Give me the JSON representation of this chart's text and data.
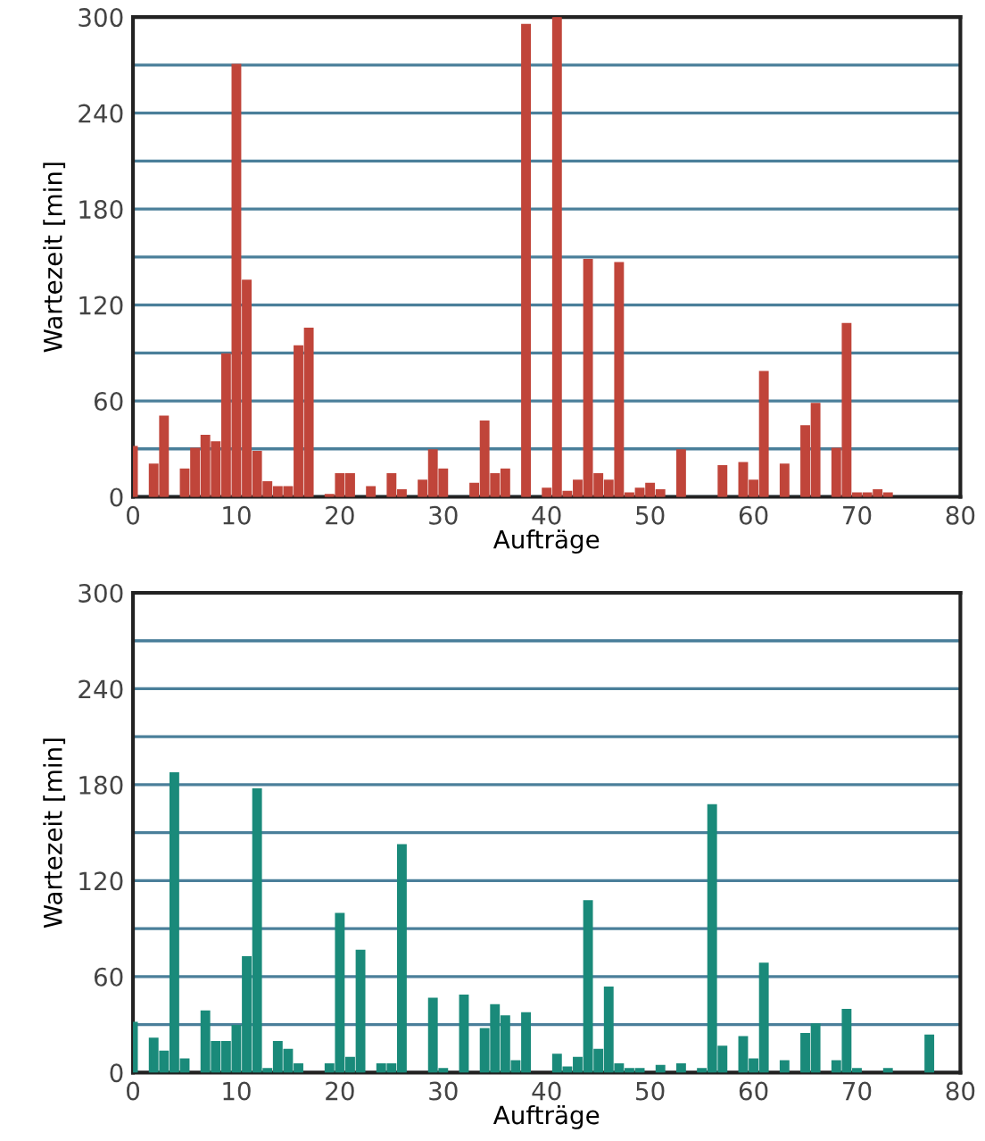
{
  "chart_data": [
    {
      "type": "bar",
      "xlabel": "Aufträge",
      "ylabel": "Wartezeit [min]",
      "color": "#c0453a",
      "grid": "y",
      "x": [
        0,
        2,
        3,
        5,
        6,
        7,
        8,
        9,
        10,
        11,
        12,
        13,
        14,
        15,
        16,
        17,
        19,
        20,
        21,
        23,
        25,
        26,
        28,
        29,
        30,
        33,
        34,
        35,
        36,
        38,
        40,
        41,
        42,
        43,
        44,
        45,
        46,
        47,
        48,
        49,
        50,
        51,
        53,
        57,
        59,
        60,
        61,
        63,
        65,
        66,
        68,
        69,
        70,
        71,
        72,
        73
      ],
      "values": [
        31,
        20,
        50,
        17,
        30,
        38,
        34,
        89,
        270,
        135,
        28,
        9,
        6,
        6,
        94,
        105,
        1,
        14,
        14,
        6,
        14,
        4,
        10,
        29,
        17,
        8,
        47,
        14,
        17,
        295,
        5,
        300,
        3,
        10,
        148,
        14,
        10,
        146,
        2,
        5,
        8,
        4,
        29,
        19,
        21,
        10,
        78,
        20,
        44,
        58,
        30,
        108,
        2,
        2,
        4,
        2
      ],
      "xlim": [
        0,
        80
      ],
      "xticks": [
        0,
        10,
        20,
        30,
        40,
        50,
        60,
        70,
        80
      ],
      "ylim": [
        0,
        300
      ],
      "yticks": [
        0,
        {
          "value": 30,
          "label": null
        },
        60,
        {
          "value": 90,
          "label": null
        },
        120,
        {
          "value": 150,
          "label": null
        },
        180,
        {
          "value": 210,
          "label": null
        },
        240,
        {
          "value": 270,
          "label": null
        },
        300
      ]
    },
    {
      "type": "bar",
      "xlabel": "Aufträge",
      "ylabel": "Wartezeit [min]",
      "color": "#1a8a7a",
      "grid": "y",
      "x": [
        0,
        2,
        3,
        4,
        5,
        7,
        8,
        9,
        10,
        11,
        12,
        13,
        14,
        15,
        16,
        19,
        20,
        21,
        22,
        24,
        25,
        26,
        29,
        30,
        32,
        34,
        35,
        36,
        37,
        38,
        41,
        42,
        43,
        44,
        45,
        46,
        47,
        48,
        49,
        51,
        53,
        55,
        56,
        57,
        59,
        60,
        61,
        63,
        65,
        66,
        68,
        69,
        70,
        73,
        77
      ],
      "values": [
        31,
        21,
        13,
        187,
        8,
        38,
        19,
        19,
        29,
        72,
        177,
        2,
        19,
        14,
        5,
        5,
        99,
        9,
        76,
        5,
        5,
        142,
        46,
        2,
        48,
        27,
        42,
        35,
        7,
        37,
        11,
        3,
        9,
        107,
        14,
        53,
        5,
        2,
        2,
        4,
        5,
        2,
        167,
        16,
        22,
        8,
        68,
        7,
        24,
        30,
        7,
        39,
        2,
        2,
        23
      ],
      "xlim": [
        0,
        80
      ],
      "xticks": [
        0,
        10,
        20,
        30,
        40,
        50,
        60,
        70,
        80
      ],
      "ylim": [
        0,
        300
      ],
      "yticks": [
        0,
        {
          "value": 30,
          "label": null
        },
        60,
        {
          "value": 90,
          "label": null
        },
        120,
        {
          "value": 150,
          "label": null
        },
        180,
        {
          "value": 210,
          "label": null
        },
        240,
        {
          "value": 270,
          "label": null
        },
        300
      ]
    }
  ]
}
